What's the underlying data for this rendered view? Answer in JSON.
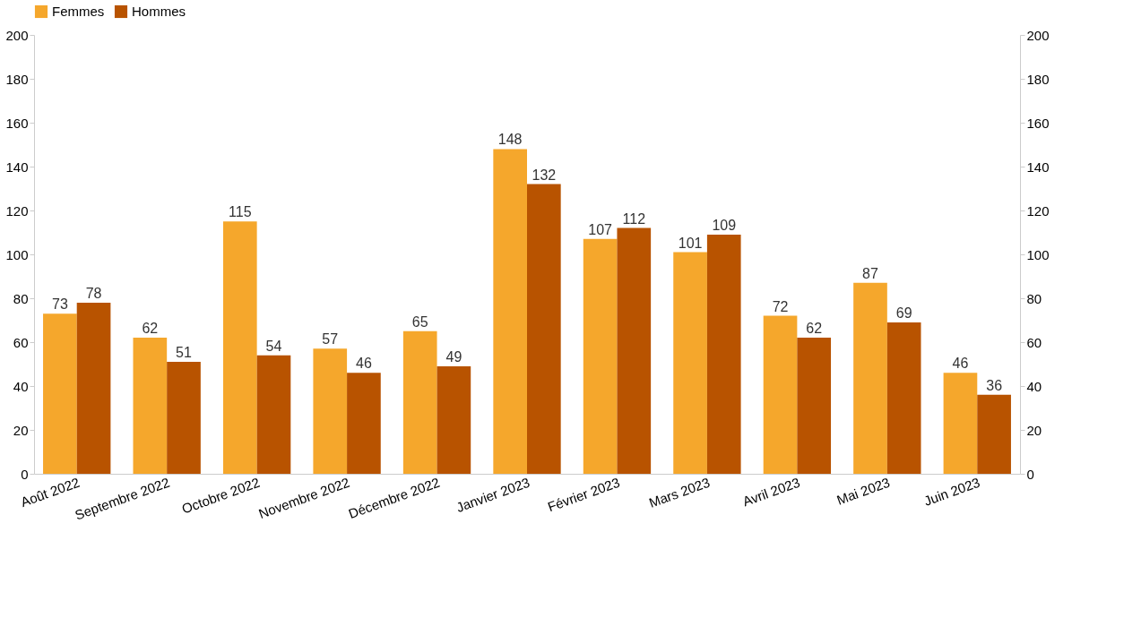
{
  "chart_data": {
    "type": "bar",
    "categories": [
      "Août 2022",
      "Septembre 2022",
      "Octobre 2022",
      "Novembre 2022",
      "Décembre 2022",
      "Janvier 2023",
      "Février 2023",
      "Mars 2023",
      "Avril 2023",
      "Mai 2023",
      "Juin 2023"
    ],
    "series": [
      {
        "name": "Femmes",
        "color": "#f5a72c",
        "values": [
          73,
          62,
          115,
          57,
          65,
          148,
          107,
          101,
          72,
          87,
          46
        ]
      },
      {
        "name": "Hommes",
        "color": "#b85300",
        "values": [
          78,
          51,
          54,
          46,
          49,
          132,
          112,
          109,
          62,
          69,
          36
        ]
      }
    ],
    "ylim": [
      0,
      200
    ],
    "yticks": [
      0,
      20,
      40,
      60,
      80,
      100,
      120,
      140,
      160,
      180,
      200
    ],
    "y2lim": [
      0,
      200
    ],
    "y2ticks": [
      0,
      20,
      40,
      60,
      80,
      100,
      120,
      140,
      160,
      180,
      200
    ],
    "data_labels": true,
    "grid": false,
    "legend": "top"
  }
}
